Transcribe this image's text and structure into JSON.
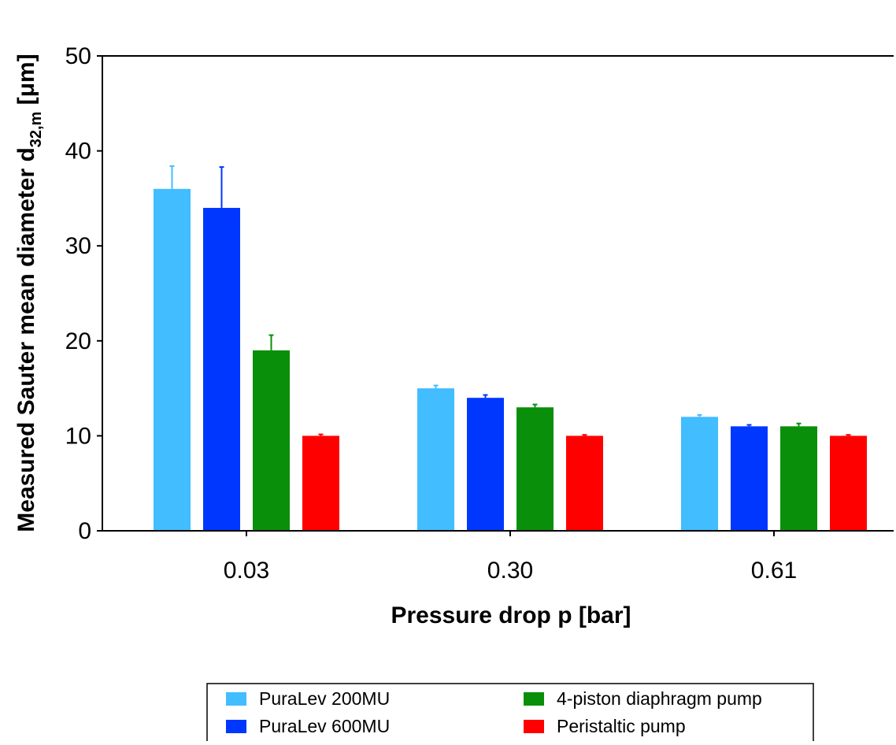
{
  "chart_data": {
    "type": "bar",
    "title": "",
    "xlabel": "Pressure drop p [bar]",
    "ylabel_parts": {
      "prefix": "Measured Sauter mean diameter d",
      "subscript": "32,m",
      "suffix": " [μm]"
    },
    "categories": [
      "0.03",
      "0.30",
      "0.61"
    ],
    "ylim": [
      0,
      50
    ],
    "yticks": [
      0,
      10,
      20,
      30,
      40,
      50
    ],
    "grid": false,
    "error_bars": "upper",
    "legend_position": "bottom",
    "series": [
      {
        "name": "PuraLev 200MU",
        "color": "#42BDFF",
        "values": [
          36,
          15,
          12
        ],
        "errors": [
          2.4,
          0.3,
          0.2
        ]
      },
      {
        "name": "PuraLev 600MU",
        "color": "#0037FF",
        "values": [
          34,
          14,
          11
        ],
        "errors": [
          4.3,
          0.3,
          0.15
        ]
      },
      {
        "name": "4-piston diaphragm pump",
        "color": "#0A8F0A",
        "values": [
          19,
          13,
          11
        ],
        "errors": [
          1.6,
          0.3,
          0.3
        ]
      },
      {
        "name": "Peristaltic pump",
        "color": "#FF0000",
        "values": [
          10,
          10,
          10
        ],
        "errors": [
          0.15,
          0.1,
          0.1
        ]
      }
    ]
  }
}
